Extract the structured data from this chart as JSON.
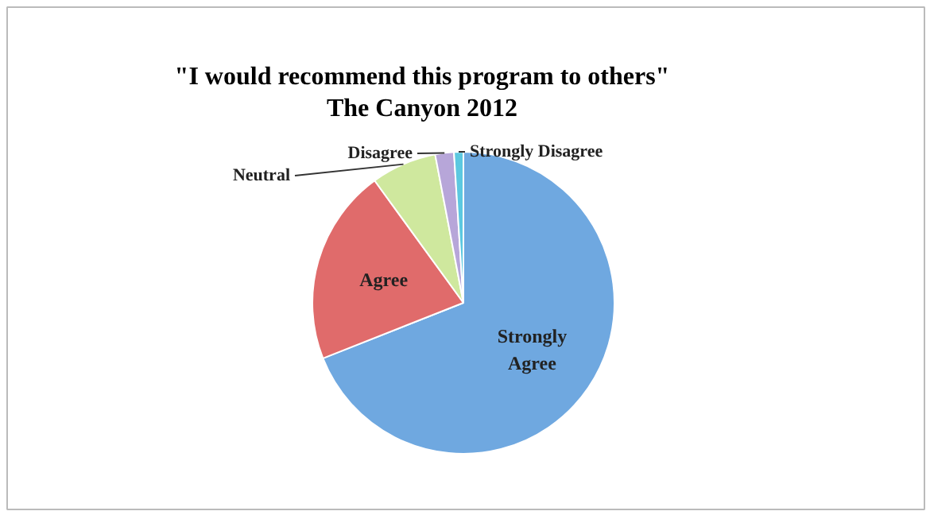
{
  "chart_data": {
    "type": "pie",
    "title": "\"I would recommend this program to others\"\nThe Canyon 2012",
    "categories": [
      "Strongly Agree",
      "Agree",
      "Neutral",
      "Disagree",
      "Strongly Disagree"
    ],
    "values": [
      69,
      21,
      7,
      2,
      1
    ],
    "colors": [
      "#6fa8e0",
      "#e06b6b",
      "#cfe89e",
      "#b7a6d9",
      "#5cc8e0"
    ]
  }
}
